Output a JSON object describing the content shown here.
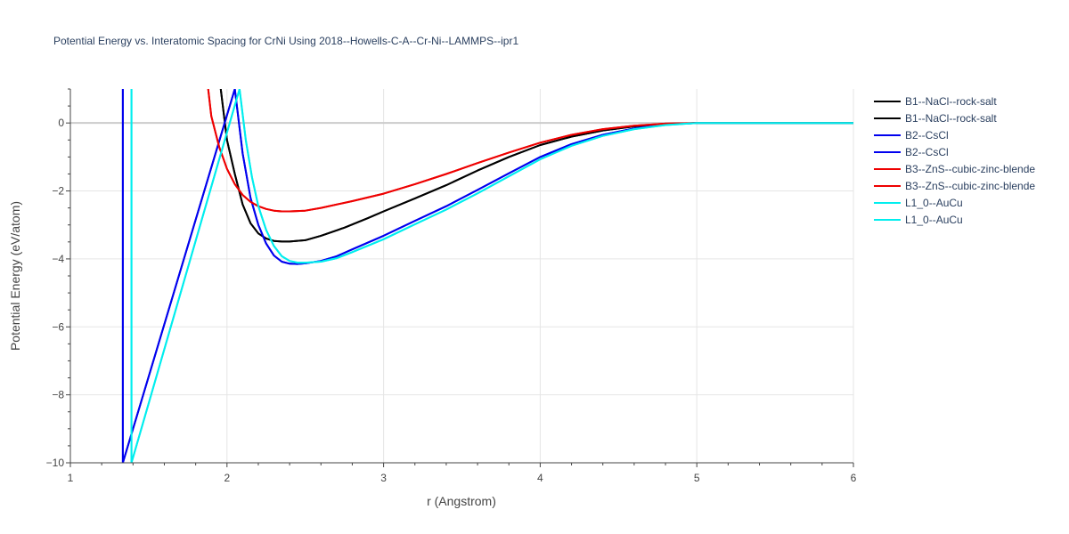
{
  "chart_data": {
    "type": "line",
    "title": "Potential Energy vs. Interatomic Spacing for CrNi Using 2018--Howells-C-A--Cr-Ni--LAMMPS--ipr1",
    "xlabel": "r (Angstrom)",
    "ylabel": "Potential Energy (eV/atom)",
    "xlim": [
      1,
      6
    ],
    "ylim": [
      -10,
      1
    ],
    "xticks": [
      1,
      2,
      3,
      4,
      5,
      6
    ],
    "yticks": [
      0,
      -2,
      -4,
      -6,
      -8,
      -10
    ],
    "xtick_labels": [
      "1",
      "2",
      "3",
      "4",
      "5",
      "6"
    ],
    "ytick_labels": [
      "0",
      "−2",
      "−4",
      "−6",
      "−8",
      "−10"
    ],
    "grid": true,
    "legend_position": "top-right-outside",
    "series": [
      {
        "name": "B1--NaCl--rock-salt",
        "color": "#000000",
        "x": [
          1.96,
          2.0,
          2.05,
          2.1,
          2.15,
          2.2,
          2.25,
          2.3,
          2.35,
          2.4,
          2.5,
          2.6,
          2.75,
          2.9,
          3.0,
          3.2,
          3.4,
          3.6,
          3.8,
          4.0,
          4.2,
          4.4,
          4.6,
          4.8,
          5.0,
          5.5,
          6.0
        ],
        "y": [
          1.0,
          -0.5,
          -1.5,
          -2.4,
          -2.95,
          -3.25,
          -3.4,
          -3.47,
          -3.49,
          -3.49,
          -3.45,
          -3.32,
          -3.08,
          -2.8,
          -2.6,
          -2.22,
          -1.83,
          -1.4,
          -1.0,
          -0.65,
          -0.4,
          -0.22,
          -0.1,
          -0.03,
          0.0,
          0.0,
          0.0
        ]
      },
      {
        "name": "B1--NaCl--rock-salt",
        "color": "#000000",
        "x": [
          1.96,
          2.0,
          2.05,
          2.1,
          2.15,
          2.2,
          2.25,
          2.3,
          2.35,
          2.4,
          2.5,
          2.6,
          2.75,
          2.9,
          3.0,
          3.2,
          3.4,
          3.6,
          3.8,
          4.0,
          4.2,
          4.4,
          4.6,
          4.8,
          5.0,
          5.5,
          6.0
        ],
        "y": [
          1.0,
          -0.5,
          -1.5,
          -2.4,
          -2.95,
          -3.25,
          -3.4,
          -3.47,
          -3.49,
          -3.49,
          -3.45,
          -3.32,
          -3.08,
          -2.8,
          -2.6,
          -2.22,
          -1.83,
          -1.4,
          -1.0,
          -0.65,
          -0.4,
          -0.22,
          -0.1,
          -0.03,
          0.0,
          0.0,
          0.0
        ]
      },
      {
        "name": "B2--CsCl",
        "color": "#0000ee",
        "x": [
          1.335,
          1.335,
          2.05,
          2.1,
          2.15,
          2.2,
          2.25,
          2.3,
          2.35,
          2.4,
          2.45,
          2.5,
          2.6,
          2.7,
          2.8,
          3.0,
          3.2,
          3.4,
          3.6,
          3.8,
          4.0,
          4.2,
          4.4,
          4.6,
          4.8,
          5.0,
          5.5,
          6.0
        ],
        "y": [
          1.0,
          -10.0,
          1.0,
          -0.9,
          -2.2,
          -3.0,
          -3.55,
          -3.9,
          -4.08,
          -4.14,
          -4.15,
          -4.13,
          -4.06,
          -3.92,
          -3.72,
          -3.32,
          -2.88,
          -2.45,
          -1.97,
          -1.48,
          -1.0,
          -0.62,
          -0.35,
          -0.16,
          -0.05,
          0.0,
          0.0,
          0.0
        ]
      },
      {
        "name": "B2--CsCl",
        "color": "#0000ee",
        "x": [
          1.335,
          1.335,
          2.05,
          2.1,
          2.15,
          2.2,
          2.25,
          2.3,
          2.35,
          2.4,
          2.45,
          2.5,
          2.6,
          2.7,
          2.8,
          3.0,
          3.2,
          3.4,
          3.6,
          3.8,
          4.0,
          4.2,
          4.4,
          4.6,
          4.8,
          5.0,
          5.5,
          6.0
        ],
        "y": [
          1.0,
          -10.0,
          1.0,
          -0.9,
          -2.2,
          -3.0,
          -3.55,
          -3.9,
          -4.08,
          -4.14,
          -4.15,
          -4.13,
          -4.06,
          -3.92,
          -3.72,
          -3.32,
          -2.88,
          -2.45,
          -1.97,
          -1.48,
          -1.0,
          -0.62,
          -0.35,
          -0.16,
          -0.05,
          0.0,
          0.0,
          0.0
        ]
      },
      {
        "name": "B3--ZnS--cubic-zinc-blende",
        "color": "#ee0000",
        "x": [
          1.88,
          1.9,
          1.95,
          2.0,
          2.05,
          2.1,
          2.15,
          2.2,
          2.25,
          2.3,
          2.35,
          2.4,
          2.5,
          2.6,
          2.8,
          3.0,
          3.2,
          3.4,
          3.6,
          3.8,
          4.0,
          4.2,
          4.4,
          4.6,
          4.8,
          5.0,
          5.5,
          6.0
        ],
        "y": [
          1.0,
          0.2,
          -0.7,
          -1.35,
          -1.8,
          -2.12,
          -2.32,
          -2.45,
          -2.53,
          -2.58,
          -2.6,
          -2.6,
          -2.58,
          -2.5,
          -2.3,
          -2.08,
          -1.8,
          -1.5,
          -1.18,
          -0.87,
          -0.58,
          -0.35,
          -0.18,
          -0.08,
          -0.02,
          0.0,
          0.0,
          0.0
        ]
      },
      {
        "name": "B3--ZnS--cubic-zinc-blende",
        "color": "#ee0000",
        "x": [
          1.88,
          1.9,
          1.95,
          2.0,
          2.05,
          2.1,
          2.15,
          2.2,
          2.25,
          2.3,
          2.35,
          2.4,
          2.5,
          2.6,
          2.8,
          3.0,
          3.2,
          3.4,
          3.6,
          3.8,
          4.0,
          4.2,
          4.4,
          4.6,
          4.8,
          5.0,
          5.5,
          6.0
        ],
        "y": [
          1.0,
          0.2,
          -0.7,
          -1.35,
          -1.8,
          -2.12,
          -2.32,
          -2.45,
          -2.53,
          -2.58,
          -2.6,
          -2.6,
          -2.58,
          -2.5,
          -2.3,
          -2.08,
          -1.8,
          -1.5,
          -1.18,
          -0.87,
          -0.58,
          -0.35,
          -0.18,
          -0.08,
          -0.02,
          0.0,
          0.0,
          0.0
        ]
      },
      {
        "name": "L1_0--AuCu",
        "color": "#00eeee",
        "x": [
          1.39,
          1.39,
          2.08,
          2.12,
          2.16,
          2.2,
          2.25,
          2.3,
          2.35,
          2.4,
          2.45,
          2.5,
          2.6,
          2.7,
          2.8,
          3.0,
          3.2,
          3.4,
          3.6,
          3.8,
          4.0,
          4.2,
          4.4,
          4.6,
          4.8,
          5.0,
          5.5,
          6.0
        ],
        "y": [
          1.0,
          -10.0,
          1.0,
          -0.5,
          -1.6,
          -2.45,
          -3.15,
          -3.62,
          -3.92,
          -4.06,
          -4.11,
          -4.11,
          -4.08,
          -3.98,
          -3.8,
          -3.42,
          -2.98,
          -2.55,
          -2.07,
          -1.57,
          -1.07,
          -0.67,
          -0.38,
          -0.18,
          -0.06,
          0.0,
          0.0,
          0.0
        ]
      },
      {
        "name": "L1_0--AuCu",
        "color": "#00eeee",
        "x": [
          1.39,
          1.39,
          2.08,
          2.12,
          2.16,
          2.2,
          2.25,
          2.3,
          2.35,
          2.4,
          2.45,
          2.5,
          2.6,
          2.7,
          2.8,
          3.0,
          3.2,
          3.4,
          3.6,
          3.8,
          4.0,
          4.2,
          4.4,
          4.6,
          4.8,
          5.0,
          5.5,
          6.0
        ],
        "y": [
          1.0,
          -10.0,
          1.0,
          -0.5,
          -1.6,
          -2.45,
          -3.15,
          -3.62,
          -3.92,
          -4.06,
          -4.11,
          -4.11,
          -4.08,
          -3.98,
          -3.8,
          -3.42,
          -2.98,
          -2.55,
          -2.07,
          -1.57,
          -1.07,
          -0.67,
          -0.38,
          -0.18,
          -0.06,
          0.0,
          0.0,
          0.0
        ]
      }
    ]
  }
}
